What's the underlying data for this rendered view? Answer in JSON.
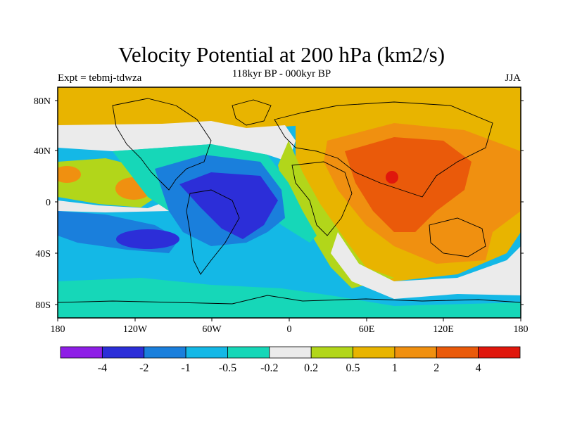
{
  "map": {
    "title": "Velocity Potential at 200 hPa (km2/s)",
    "subtitle": "118kyr BP - 000kyr BP",
    "left_label": "Expt = tebmj-tdwza",
    "right_label": "JJA",
    "lat_labels": [
      "80N",
      "40N",
      "0",
      "40S",
      "80S"
    ],
    "lon_labels": [
      "180",
      "120W",
      "60W",
      "0",
      "60E",
      "120E",
      "180"
    ]
  },
  "colorbar": {
    "colors": [
      "#8e1ee6",
      "#2c2ed8",
      "#1a7fdc",
      "#14b8e6",
      "#16d7b8",
      "#ebebeb",
      "#b2d61a",
      "#e8b400",
      "#f09010",
      "#ea5a0a",
      "#e0170c"
    ],
    "labels": [
      "-4",
      "-2",
      "-1",
      "-0.5",
      "-0.2",
      "0.2",
      "0.5",
      "1",
      "2",
      "4"
    ]
  }
}
